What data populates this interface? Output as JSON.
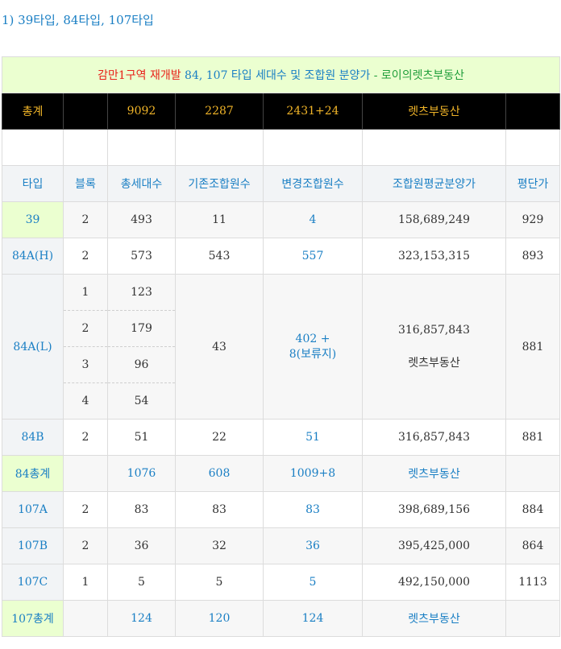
{
  "heading": "1) 39타입, 84타입, 107타입",
  "title": {
    "part1": "감만1구역 재개발",
    "part2": " 84, 107 타입 세대수 및 조합원 분양가",
    "part3": " - 로이의렛츠부동산"
  },
  "totals": [
    "총계",
    "",
    "9092",
    "2287",
    "2431+24",
    "렛츠부동산",
    ""
  ],
  "headers": [
    "타입",
    "블록",
    "총세대수",
    "기존조합원수",
    "변경조합원수",
    "조합원평균분양가",
    "평단가"
  ],
  "rows": {
    "r39": [
      "39",
      "2",
      "493",
      "11",
      "4",
      "158,689,249",
      "929"
    ],
    "r84h": [
      "84A(H)",
      "2",
      "573",
      "543",
      "557",
      "323,153,315",
      "893"
    ],
    "r84l": {
      "type": "84A(L)",
      "blocks": [
        {
          "block": "1",
          "units": "123"
        },
        {
          "block": "2",
          "units": "179"
        },
        {
          "block": "3",
          "units": "96"
        },
        {
          "block": "4",
          "units": "54"
        }
      ],
      "existing": "43",
      "changed_line1": "402 +",
      "changed_line2": "8(보류지)",
      "price": "316,857,843",
      "watermark": "렛츠부동산",
      "pyeong": "881"
    },
    "r84b": [
      "84B",
      "2",
      "51",
      "22",
      "51",
      "316,857,843",
      "881"
    ],
    "s84": [
      "84총계",
      "",
      "1076",
      "608",
      "1009+8",
      "렛츠부동산",
      ""
    ],
    "r107a": [
      "107A",
      "2",
      "83",
      "83",
      "83",
      "398,689,156",
      "884"
    ],
    "r107b": [
      "107B",
      "2",
      "36",
      "32",
      "36",
      "395,425,000",
      "864"
    ],
    "r107c": [
      "107C",
      "1",
      "5",
      "5",
      "5",
      "492,150,000",
      "1113"
    ],
    "s107": [
      "107총계",
      "",
      "124",
      "120",
      "124",
      "렛츠부동산",
      ""
    ]
  },
  "colors": {
    "blue": "#1a7fc4",
    "red": "#e8221a",
    "green": "#1f9d3a",
    "gold": "#f0b428",
    "title_bg": "#ebffd0",
    "header_bg": "#f2f4f6"
  }
}
